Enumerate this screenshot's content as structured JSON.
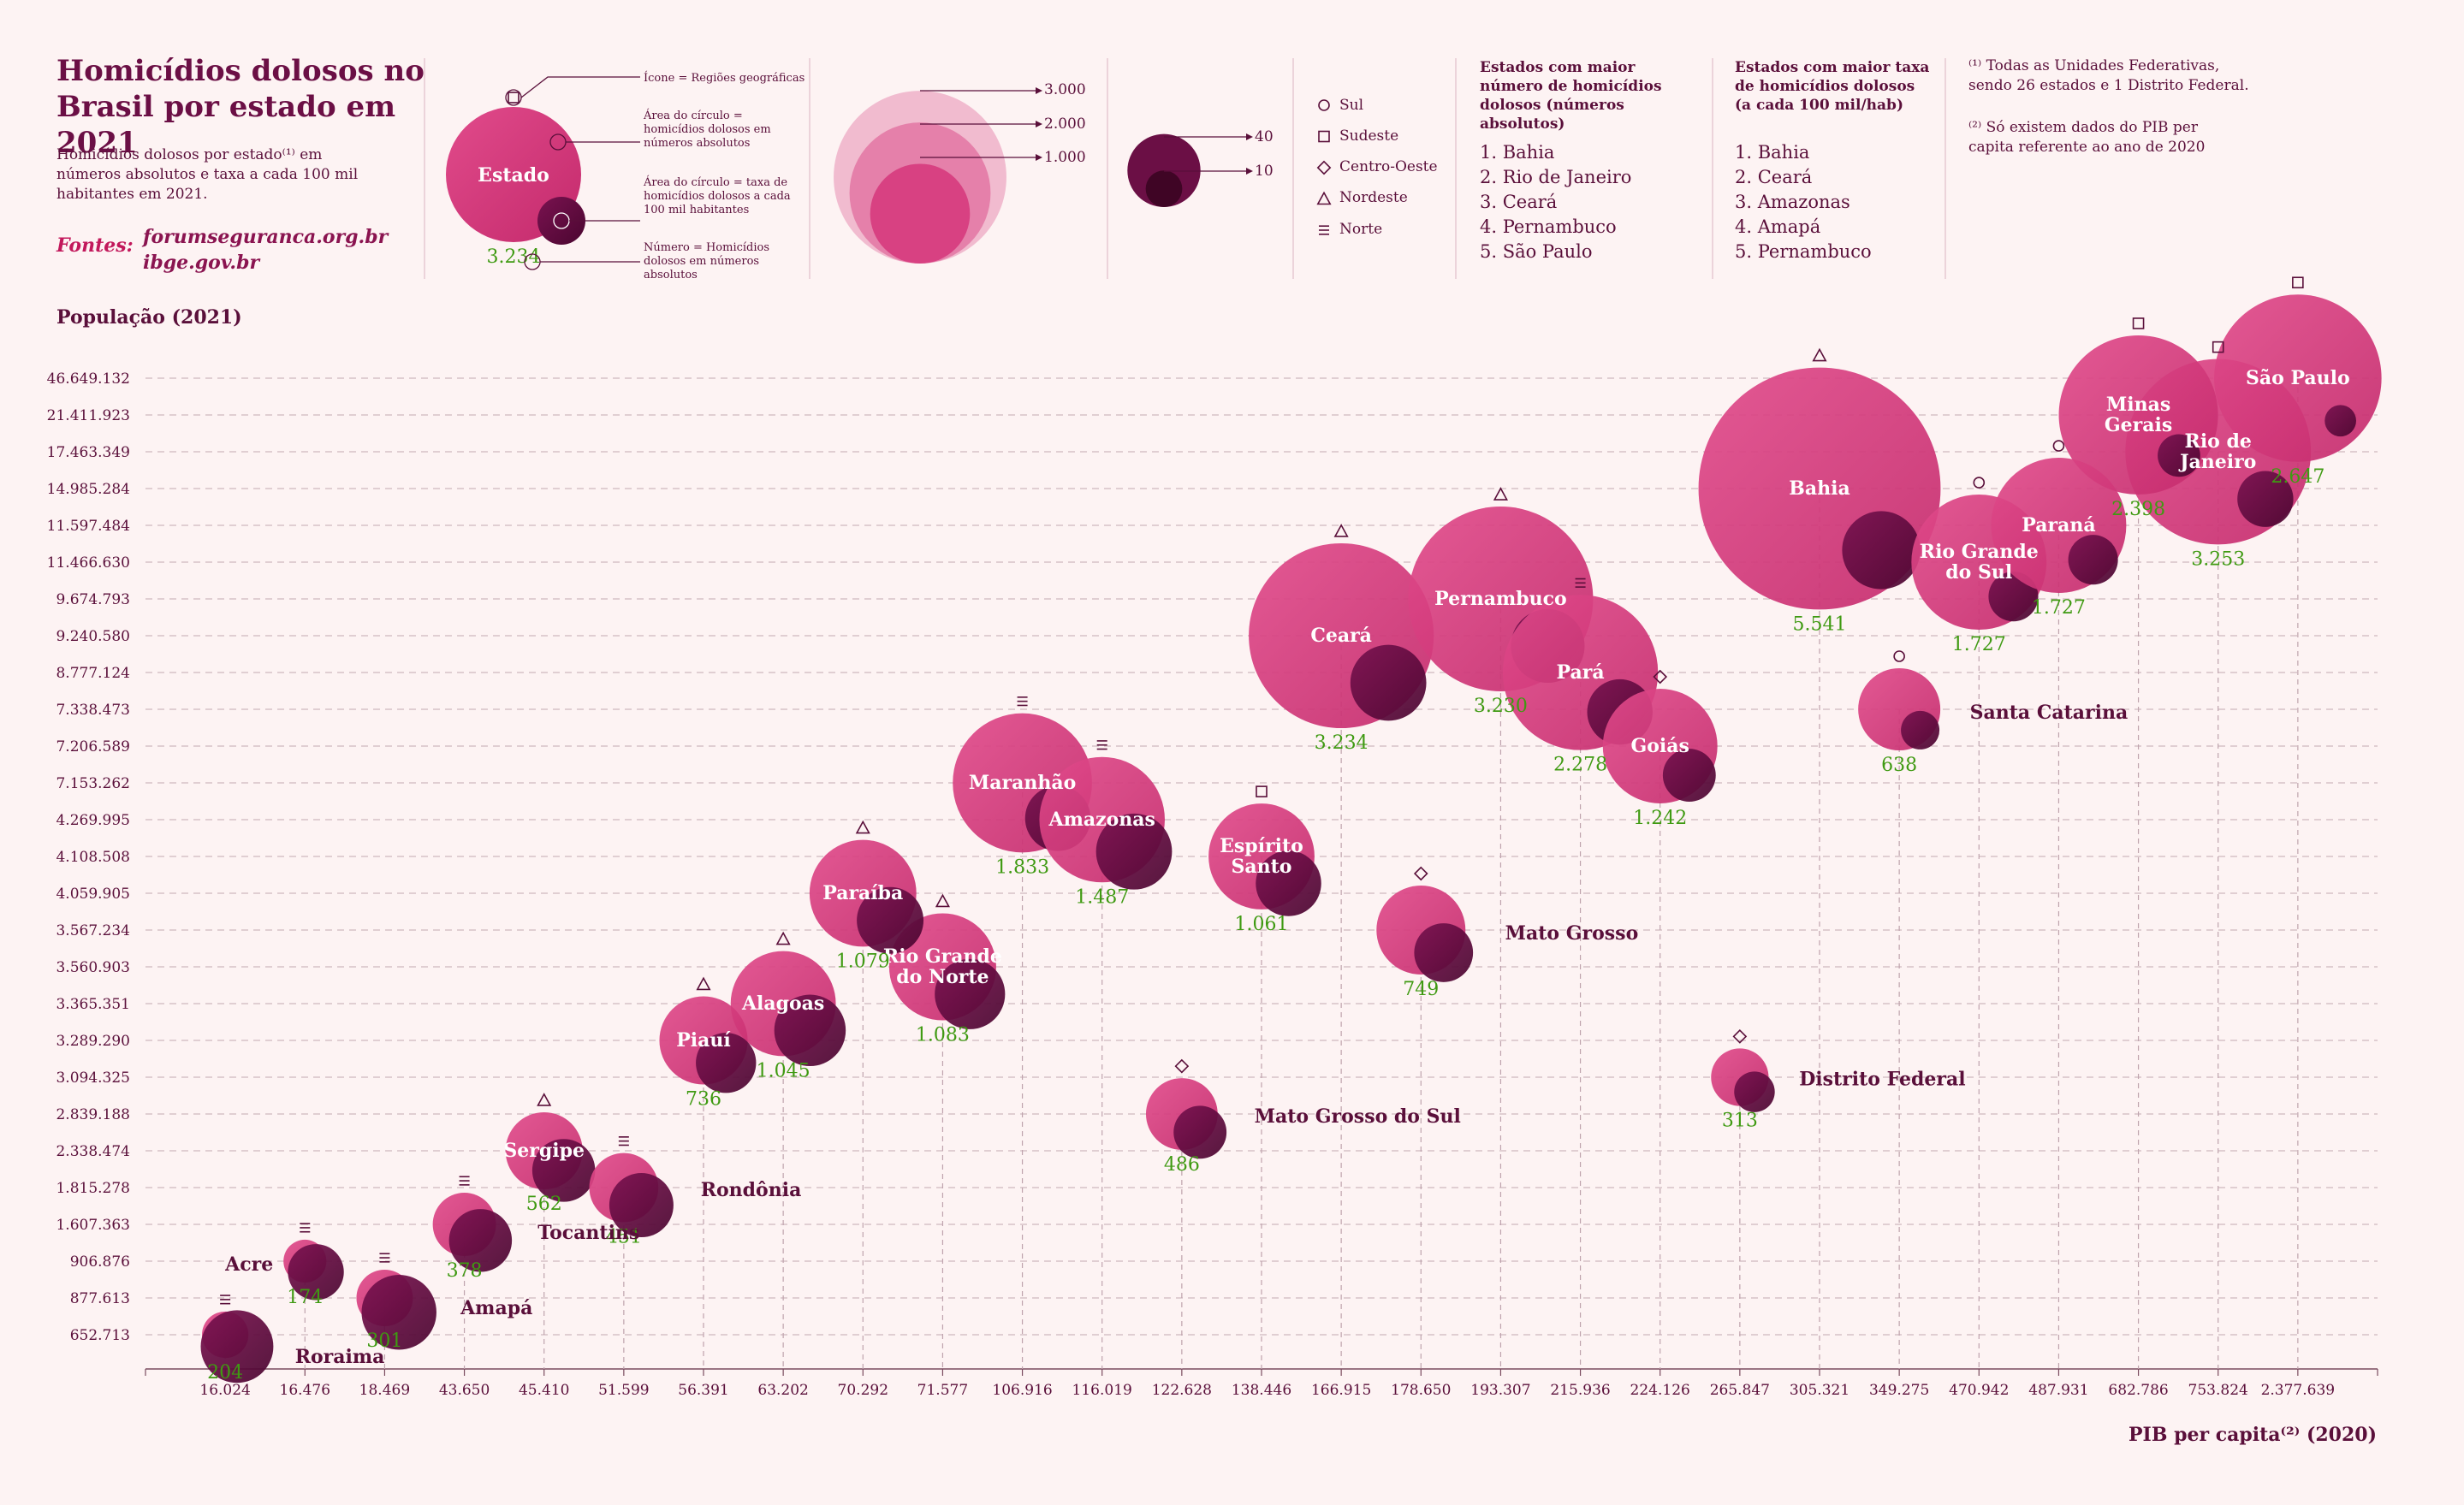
{
  "header": {
    "title": "Homicídios dolosos no Brasil por estado em 2021",
    "subtitle": "Homicídios dolosos por estado⁽¹⁾ em números absolutos e taxa a cada 100 mil habitantes em 2021.",
    "sources_label": "Fontes:",
    "sources": [
      "forumseguranca.org.br",
      "ibge.gov.br"
    ]
  },
  "legend_key": {
    "state_label": "Estado",
    "number": "3.234",
    "icon_note": "Ícone = Regiões geográficas",
    "area_abs_note": "Área do círculo = homicídios dolosos em números absolutos",
    "area_rate_note": "Área do círculo = taxa de homicídios dolosos a cada 100 mil habitantes",
    "number_note": "Número = Homicídios dolosos em números absolutos"
  },
  "size_legend_abs": [
    "3.000",
    "2.000",
    "1.000"
  ],
  "size_legend_rate": [
    "40",
    "10"
  ],
  "regions": [
    {
      "symbol": "circle",
      "label": "Sul"
    },
    {
      "symbol": "square",
      "label": "Sudeste"
    },
    {
      "symbol": "diamond",
      "label": "Centro-Oeste"
    },
    {
      "symbol": "triangle",
      "label": "Nordeste"
    },
    {
      "symbol": "lines",
      "label": "Norte"
    }
  ],
  "rank_abs": {
    "heading": "Estados com maior número de homicídios dolosos (números absolutos)",
    "items": [
      "1.  Bahia",
      "2. Rio de Janeiro",
      "3. Ceará",
      "4. Pernambuco",
      "5. São Paulo"
    ]
  },
  "rank_rate": {
    "heading": "Estados com maior taxa de homicídios dolosos (a cada 100 mil/hab)",
    "items": [
      "1.  Bahia",
      "2. Ceará",
      "3. Amazonas",
      "4. Amapá",
      "5. Pernambuco"
    ]
  },
  "notes": {
    "note1": "⁽¹⁾ Todas as Unidades Federativas, sendo 26 estados e 1 Distrito Federal.",
    "note2": "⁽²⁾ Só existem dados do PIB per capita referente ao ano de 2020"
  },
  "colors": {
    "background": "#fdf3f3",
    "abs_circle": "#d63a7d",
    "rate_circle": "#6b0f45",
    "number": "#4caf1a",
    "text": "#5a0f3a"
  },
  "chart_data": {
    "type": "scatter",
    "xlabel": "PIB per capita⁽²⁾ (2020)",
    "ylabel": "População (2021)",
    "x_ticks": [
      "16.024",
      "16.476",
      "18.469",
      "43.650",
      "45.410",
      "51.599",
      "56.391",
      "63.202",
      "70.292",
      "71.577",
      "106.916",
      "116.019",
      "122.628",
      "138.446",
      "166.915",
      "178.650",
      "193.307",
      "215.936",
      "224.126",
      "265.847",
      "305.321",
      "349.275",
      "470.942",
      "487.931",
      "682.786",
      "753.824",
      "2.377.639"
    ],
    "y_ticks": [
      "652.713",
      "877.613",
      "906.876",
      "1.607.363",
      "1.815.278",
      "2.338.474",
      "2.839.188",
      "3.094.325",
      "3.289.290",
      "3.365.351",
      "3.560.903",
      "3.567.234",
      "4.059.905",
      "4.108.508",
      "4.269.995",
      "7.153.262",
      "7.206.589",
      "7.338.473",
      "8.777.124",
      "9.240.580",
      "9.674.793",
      "11.466.630",
      "11.597.484",
      "14.985.284",
      "17.463.349",
      "21.411.923",
      "46.649.132"
    ],
    "series": [
      {
        "name": "Roraima",
        "region": "lines",
        "x": "16.024",
        "y": "652.713",
        "homicides": "204",
        "homicides_value": 204,
        "rate": 32
      },
      {
        "name": "Acre",
        "region": "lines",
        "x": "16.476",
        "y": "906.876",
        "homicides": "174",
        "homicides_value": 174,
        "rate": 19
      },
      {
        "name": "Amapá",
        "region": "lines",
        "x": "18.469",
        "y": "877.613",
        "homicides": "301",
        "homicides_value": 301,
        "rate": 34
      },
      {
        "name": "Tocantins",
        "region": "lines",
        "x": "43.650",
        "y": "1.607.363",
        "homicides": "378",
        "homicides_value": 378,
        "rate": 24
      },
      {
        "name": "Sergipe",
        "region": "triangle",
        "x": "45.410",
        "y": "2.338.474",
        "homicides": "562",
        "homicides_value": 562,
        "rate": 24
      },
      {
        "name": "Rondônia",
        "region": "lines",
        "x": "51.599",
        "y": "1.815.278",
        "homicides": "451",
        "homicides_value": 451,
        "rate": 25
      },
      {
        "name": "Piauí",
        "region": "triangle",
        "x": "56.391",
        "y": "3.289.290",
        "homicides": "736",
        "homicides_value": 736,
        "rate": 22
      },
      {
        "name": "Alagoas",
        "region": "triangle",
        "x": "63.202",
        "y": "3.365.351",
        "homicides": "1.045",
        "homicides_value": 1045,
        "rate": 31
      },
      {
        "name": "Paraíba",
        "region": "triangle",
        "x": "70.292",
        "y": "4.059.905",
        "homicides": "1.079",
        "homicides_value": 1079,
        "rate": 27
      },
      {
        "name": "Rio Grande do Norte",
        "region": "triangle",
        "x": "71.577",
        "y": "3.560.903",
        "homicides": "1.083",
        "homicides_value": 1083,
        "rate": 30
      },
      {
        "name": "Maranhão",
        "region": "lines",
        "x": "106.916",
        "y": "7.153.262",
        "homicides": "1.833",
        "homicides_value": 1833,
        "rate": 26
      },
      {
        "name": "Amazonas",
        "region": "lines",
        "x": "116.019",
        "y": "4.269.995",
        "homicides": "1.487",
        "homicides_value": 1487,
        "rate": 35
      },
      {
        "name": "Mato Grosso do Sul",
        "region": "diamond",
        "x": "122.628",
        "y": "2.839.188",
        "homicides": "486",
        "homicides_value": 486,
        "rate": 17
      },
      {
        "name": "Espírito Santo",
        "region": "square",
        "x": "138.446",
        "y": "4.108.508",
        "homicides": "1.061",
        "homicides_value": 1061,
        "rate": 26
      },
      {
        "name": "Ceará",
        "region": "triangle",
        "x": "166.915",
        "y": "9.240.580",
        "homicides": "3.234",
        "homicides_value": 3234,
        "rate": 35
      },
      {
        "name": "Mato Grosso",
        "region": "diamond",
        "x": "178.650",
        "y": "3.567.234",
        "homicides": "749",
        "homicides_value": 749,
        "rate": 21
      },
      {
        "name": "Pernambuco",
        "region": "triangle",
        "x": "193.307",
        "y": "9.674.793",
        "homicides": "3.230",
        "homicides_value": 3230,
        "rate": 33
      },
      {
        "name": "Pará",
        "region": "lines",
        "x": "215.936",
        "y": "8.777.124",
        "homicides": "2.278",
        "homicides_value": 2278,
        "rate": 26
      },
      {
        "name": "Goiás",
        "region": "diamond",
        "x": "224.126",
        "y": "7.206.589",
        "homicides": "1.242",
        "homicides_value": 1242,
        "rate": 17
      },
      {
        "name": "Distrito Federal",
        "region": "diamond",
        "x": "265.847",
        "y": "3.094.325",
        "homicides": "313",
        "homicides_value": 313,
        "rate": 10
      },
      {
        "name": "Bahia",
        "region": "triangle",
        "x": "305.321",
        "y": "14.985.284",
        "homicides": "5.541",
        "homicides_value": 5541,
        "rate": 37
      },
      {
        "name": "Santa Catarina",
        "region": "circle",
        "x": "349.275",
        "y": "7.338.473",
        "homicides": "638",
        "homicides_value": 638,
        "rate": 9
      },
      {
        "name": "Rio Grande do Sul",
        "region": "circle",
        "x": "470.942",
        "y": "11.466.630",
        "homicides": "1.727",
        "homicides_value": 1727,
        "rate": 15
      },
      {
        "name": "Paraná",
        "region": "circle",
        "x": "487.931",
        "y": "11.597.484",
        "homicides": "1.727",
        "homicides_value": 1727,
        "rate": 15
      },
      {
        "name": "Minas Gerais",
        "region": "square",
        "x": "682.786",
        "y": "21.411.923",
        "homicides": "2.398",
        "homicides_value": 2398,
        "rate": 11
      },
      {
        "name": "Rio de Janeiro",
        "region": "square",
        "x": "753.824",
        "y": "17.463.349",
        "homicides": "3.253",
        "homicides_value": 3253,
        "rate": 19
      },
      {
        "name": "São Paulo",
        "region": "square",
        "x": "2.377.639",
        "y": "46.649.132",
        "homicides": "2.647",
        "homicides_value": 2647,
        "rate": 6
      }
    ]
  }
}
